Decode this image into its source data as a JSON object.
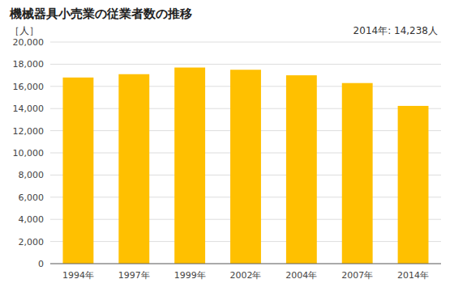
{
  "chart_data": {
    "type": "bar",
    "title": "機械器具小売業の従業者数の推移",
    "ylabel": "［人］",
    "annotation": "2014年: 14,238人",
    "categories": [
      "1994年",
      "1997年",
      "1999年",
      "2002年",
      "2004年",
      "2007年",
      "2014年"
    ],
    "values": [
      16800,
      17100,
      17700,
      17500,
      17000,
      16300,
      14238
    ],
    "color": "#FFC000",
    "ylim": [
      0,
      20000
    ],
    "yticks": [
      0,
      {
        "value": 2000,
        "label": "2,000"
      },
      {
        "value": 4000,
        "label": "4,000"
      },
      {
        "value": 6000,
        "label": "6,000"
      },
      {
        "value": 8000,
        "label": "8,000"
      },
      {
        "value": 10000,
        "label": "10,000"
      },
      {
        "value": 12000,
        "label": "12,000"
      },
      {
        "value": 14000,
        "label": "14,000"
      },
      {
        "value": 16000,
        "label": "16,000"
      },
      {
        "value": 18000,
        "label": "18,000"
      },
      {
        "value": 20000,
        "label": "20,000"
      }
    ],
    "grid": true
  }
}
